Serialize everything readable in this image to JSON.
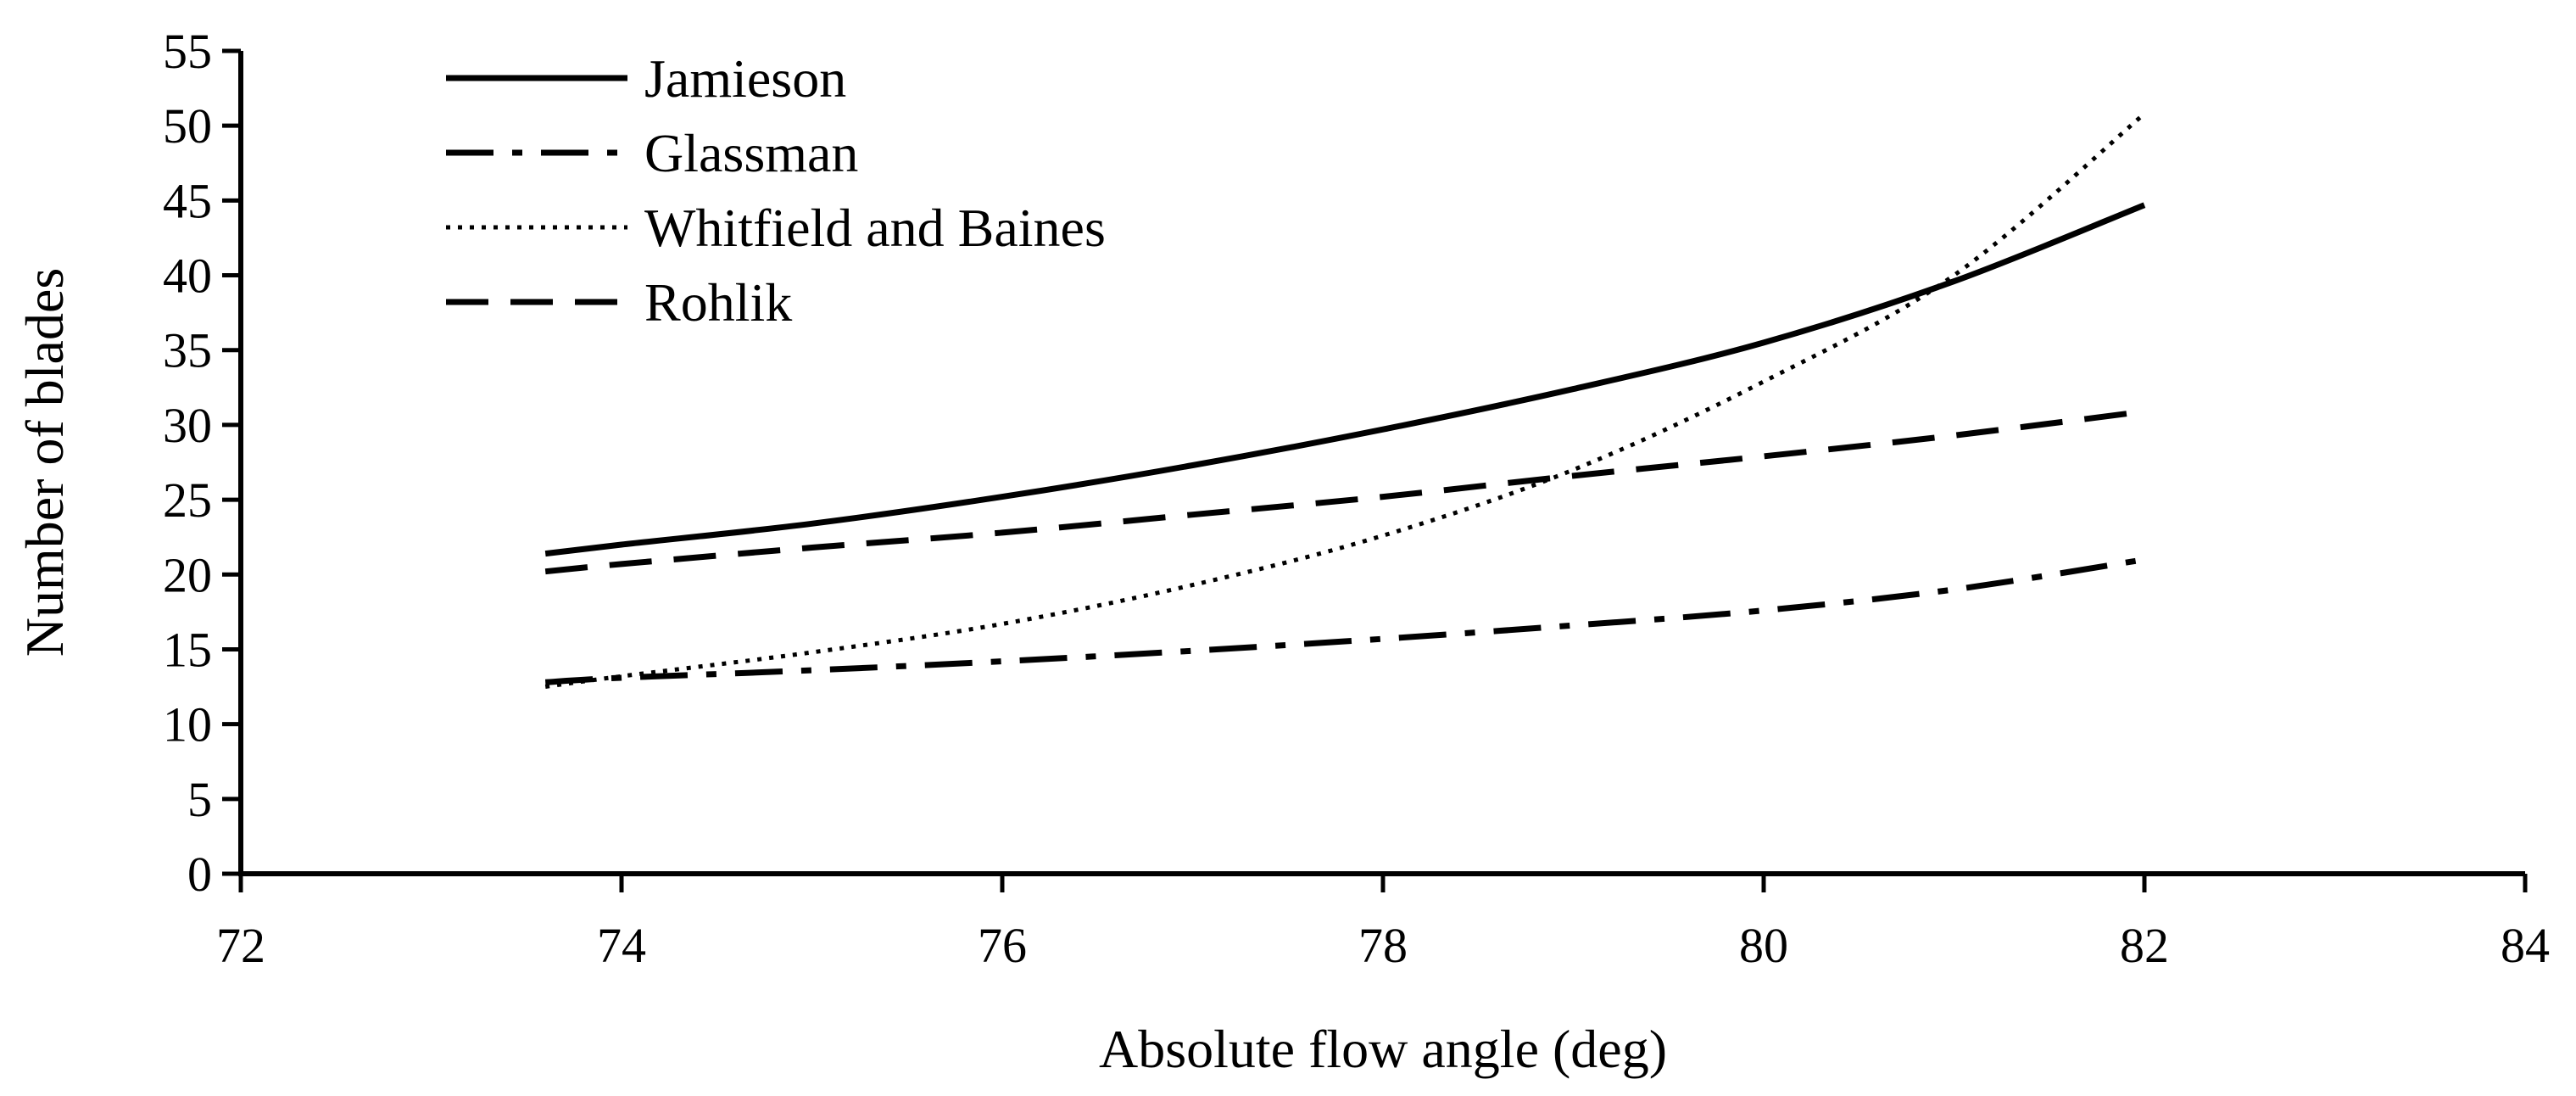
{
  "chart_data": {
    "type": "line",
    "title": "",
    "xlabel": "Absolute flow angle (deg)",
    "ylabel": "Number of blades",
    "xlim": [
      72,
      84
    ],
    "ylim": [
      0,
      55
    ],
    "xticks": [
      72,
      74,
      76,
      78,
      80,
      82,
      84
    ],
    "yticks": [
      0,
      5,
      10,
      15,
      20,
      25,
      30,
      35,
      40,
      45,
      50,
      55
    ],
    "grid": false,
    "legend_position": "top-left",
    "series": [
      {
        "name": "Jamieson",
        "style": "solid",
        "x": [
          73.6,
          74,
          75,
          76,
          77,
          78,
          79,
          80,
          81,
          82
        ],
        "y": [
          21.4,
          22.0,
          23.4,
          25.2,
          27.3,
          29.7,
          32.4,
          35.5,
          39.6,
          44.7
        ]
      },
      {
        "name": "Glassman",
        "style": "dashdot",
        "x": [
          73.6,
          74,
          75,
          76,
          77,
          78,
          79,
          80,
          81,
          82
        ],
        "y": [
          12.8,
          13.1,
          13.6,
          14.2,
          14.9,
          15.7,
          16.6,
          17.6,
          19.0,
          21.0
        ]
      },
      {
        "name": "Whitfield and Baines",
        "style": "dotted",
        "x": [
          73.6,
          74,
          75,
          76,
          77,
          78,
          79,
          80,
          81,
          82
        ],
        "y": [
          12.5,
          13.2,
          14.8,
          16.7,
          19.3,
          22.6,
          27.0,
          32.9,
          40.0,
          50.8
        ]
      },
      {
        "name": "Rohlik",
        "style": "dashed",
        "x": [
          73.6,
          74,
          75,
          76,
          77,
          78,
          79,
          80,
          81,
          82
        ],
        "y": [
          20.2,
          20.7,
          21.8,
          22.8,
          24.0,
          25.2,
          26.6,
          27.9,
          29.3,
          30.9
        ]
      }
    ]
  }
}
